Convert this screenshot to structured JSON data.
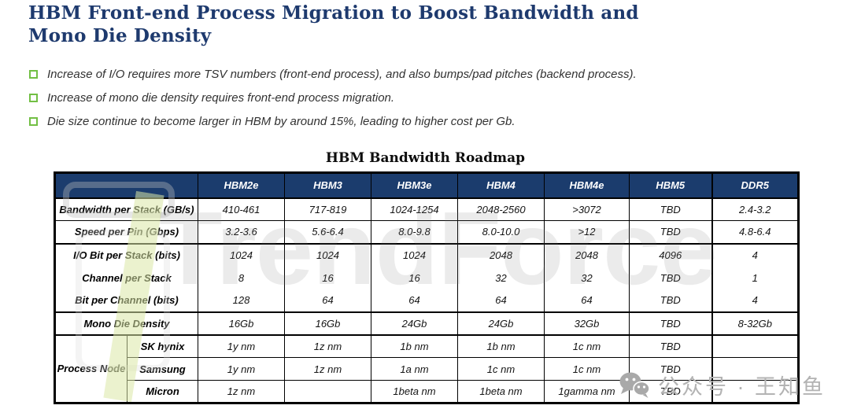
{
  "page": {
    "title": "HBM Front-end Process Migration to Boost Bandwidth and Mono Die Density"
  },
  "colors": {
    "title_blue": "#1E3A6E",
    "bullet_green": "#72BF44",
    "table_header_bg": "#1B3C6D",
    "table_header_text": "#FFFFFF",
    "watermark_gray": "#BDBDBD",
    "logo_slash_green": "#DBE7A6"
  },
  "bullets": {
    "items": [
      "Increase of I/O requires more TSV numbers (front-end process), and also bumps/pad pitches (backend process).",
      "Increase of mono die density requires front-end process migration.",
      "Die size continue to become larger in HBM by around 15%, leading to higher cost per Gb."
    ]
  },
  "table": {
    "title": "HBM Bandwidth Roadmap",
    "columns": [
      "",
      "HBM2e",
      "HBM3",
      "HBM3e",
      "HBM4",
      "HBM4e",
      "HBM5",
      "DDR5"
    ],
    "rows": [
      {
        "label": "Bandwidth per Stack (GB/s)",
        "values": [
          "410-461",
          "717-819",
          "1024-1254",
          "2048-2560",
          ">3072",
          "TBD",
          "2.4-3.2"
        ]
      },
      {
        "label": "Speed per Pin (Gbps)",
        "values": [
          "3.2-3.6",
          "5.6-6.4",
          "8.0-9.8",
          "8.0-10.0",
          ">12",
          "TBD",
          "4.8-6.4"
        ]
      },
      {
        "label": "I/O Bit per Stack (bits)",
        "values": [
          "1024",
          "1024",
          "1024",
          "2048",
          "2048",
          "4096",
          "4"
        ]
      },
      {
        "label": "Channel per Stack",
        "values": [
          "8",
          "16",
          "16",
          "32",
          "32",
          "TBD",
          "1"
        ]
      },
      {
        "label": "Bit per Channel (bits)",
        "values": [
          "128",
          "64",
          "64",
          "64",
          "64",
          "TBD",
          "4"
        ]
      },
      {
        "label": "Mono Die Density",
        "values": [
          "16Gb",
          "16Gb",
          "24Gb",
          "24Gb",
          "32Gb",
          "TBD",
          "8-32Gb"
        ]
      },
      {
        "group": "Process Node",
        "label": "SK hynix",
        "values": [
          "1y nm",
          "1z nm",
          "1b nm",
          "1b nm",
          "1c nm",
          "TBD",
          ""
        ]
      },
      {
        "label": "Samsung",
        "values": [
          "1y nm",
          "1z nm",
          "1a nm",
          "1c nm",
          "1c nm",
          "TBD",
          ""
        ]
      },
      {
        "label": "Micron",
        "values": [
          "1z nm",
          "",
          "1beta nm",
          "1beta nm",
          "1gamma nm",
          "TBD",
          ""
        ]
      }
    ]
  },
  "watermarks": {
    "trendforce_text": "TrendForce",
    "wechat_text": "公众号 · 王知鱼"
  }
}
